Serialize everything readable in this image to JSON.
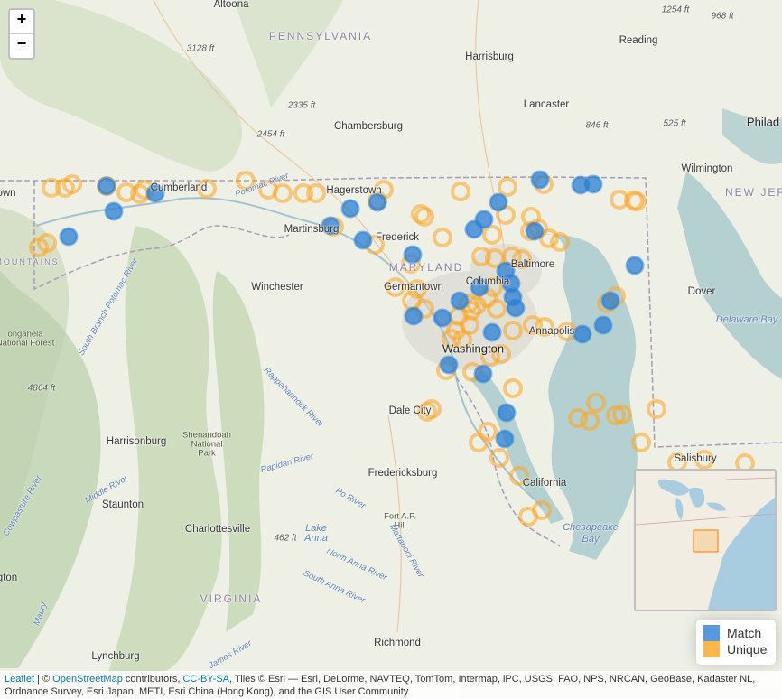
{
  "zoom": {
    "in_label": "+",
    "out_label": "−"
  },
  "colors": {
    "match": "#2b7fd6",
    "unique": "#ffa41c",
    "water": "#b5d0d0",
    "land": "#eef0e6"
  },
  "labels": {
    "altoona": "Altoona",
    "pennsylvania": "PENNSYLVANIA",
    "harrisburg": "Harrisburg",
    "reading": "Reading",
    "philad": "Philad",
    "lancaster": "Lancaster",
    "chambersburg": "Chambersburg",
    "wilmington": "Wilmington",
    "new_jersey": "NEW JERS",
    "hagerstown": "Hagerstown",
    "cumberland": "Cumberland",
    "martinsburg": "Martinsburg",
    "frederick": "Frederick",
    "maryland": "MARYLAND",
    "baltimore": "Baltimore",
    "columbia": "Columbia",
    "germantown": "Germantown",
    "winchester": "Winchester",
    "dover": "Dover",
    "delaware_bay": "Delaware Bay",
    "annapolis": "Annapolis",
    "washington": "Washington",
    "dale_city": "Dale City",
    "harrisonburg": "Harrisonburg",
    "shenandoah": "Shenandoah",
    "national": "National",
    "park": "Park",
    "fredericksburg": "Fredericksburg",
    "california": "California",
    "salisbury": "Salisbury",
    "staunton": "Staunton",
    "charlottesville": "Charlottesville",
    "fort_ap": "Fort A.P.",
    "hill": "Hill",
    "lake": "Lake",
    "anna": "Anna",
    "chesapeake": "Chesapeake",
    "bay": "Bay",
    "virginia": "VIRGINIA",
    "richmond": "Richmond",
    "lynchburg": "Lynchburg",
    "mountains": "MOUNTAINS",
    "town": "own",
    "gton": "gton",
    "national_line": "National Forest",
    "gongahela": "ongahela",
    "elev_1254": "1254 ft",
    "elev_968": "968 ft",
    "elev_3128": "3128 ft",
    "elev_2335": "2335 ft",
    "elev_2454": "2454 ft",
    "elev_846": "846 ft",
    "elev_525": "525 ft",
    "elev_4864": "4864 ft",
    "elev_462": "462 ft",
    "potomac_river": "Potomac River",
    "south_branch": "South Branch Potomac River",
    "rappahannock": "Rappahannock River",
    "rapidan": "Rapidan River",
    "po_river": "Po River",
    "middle_river": "Middle River",
    "pasture_river": "Cowpasture River",
    "north_anna": "North Anna River",
    "south_anna": "South Anna River",
    "mattaponi": "Mattaponi River",
    "james_river": "James River",
    "maury": "Maury"
  },
  "legend": {
    "match_label": "Match",
    "unique_label": "Unique"
  },
  "markers": {
    "match": [
      [
        172,
        214
      ],
      [
        126,
        234
      ],
      [
        76,
        262
      ],
      [
        388,
        231
      ],
      [
        366,
        250
      ],
      [
        402,
        266
      ],
      [
        418,
        224
      ],
      [
        457,
        282
      ],
      [
        552,
        224
      ],
      [
        536,
        243
      ],
      [
        525,
        254
      ],
      [
        598,
        199
      ],
      [
        643,
        205
      ],
      [
        657,
        204
      ],
      [
        592,
        256
      ],
      [
        703,
        294
      ],
      [
        560,
        300
      ],
      [
        566,
        314
      ],
      [
        531,
        318
      ],
      [
        509,
        333
      ],
      [
        490,
        352
      ],
      [
        458,
        350
      ],
      [
        545,
        368
      ],
      [
        571,
        341
      ],
      [
        568,
        329
      ],
      [
        676,
        333
      ],
      [
        668,
        360
      ],
      [
        645,
        370
      ],
      [
        497,
        404
      ],
      [
        535,
        414
      ],
      [
        561,
        457
      ],
      [
        559,
        486
      ],
      [
        118,
        206
      ]
    ],
    "unique": [
      [
        57,
        208
      ],
      [
        72,
        208
      ],
      [
        80,
        204
      ],
      [
        118,
        206
      ],
      [
        140,
        213
      ],
      [
        155,
        215
      ],
      [
        160,
        210
      ],
      [
        52,
        269
      ],
      [
        43,
        274
      ],
      [
        229,
        209
      ],
      [
        272,
        200
      ],
      [
        297,
        210
      ],
      [
        313,
        214
      ],
      [
        336,
        214
      ],
      [
        350,
        214
      ],
      [
        425,
        210
      ],
      [
        418,
        222
      ],
      [
        510,
        212
      ],
      [
        562,
        207
      ],
      [
        602,
        204
      ],
      [
        370,
        251
      ],
      [
        415,
        271
      ],
      [
        490,
        263
      ],
      [
        466,
        237
      ],
      [
        470,
        240
      ],
      [
        560,
        238
      ],
      [
        588,
        240
      ],
      [
        545,
        260
      ],
      [
        533,
        284
      ],
      [
        548,
        286
      ],
      [
        567,
        284
      ],
      [
        578,
        287
      ],
      [
        587,
        256
      ],
      [
        608,
        264
      ],
      [
        620,
        268
      ],
      [
        596,
        253
      ],
      [
        686,
        221
      ],
      [
        705,
        223
      ],
      [
        702,
        222
      ],
      [
        455,
        292
      ],
      [
        438,
        318
      ],
      [
        462,
        320
      ],
      [
        456,
        333
      ],
      [
        470,
        342
      ],
      [
        508,
        350
      ],
      [
        519,
        336
      ],
      [
        522,
        344
      ],
      [
        528,
        338
      ],
      [
        540,
        330
      ],
      [
        546,
        318
      ],
      [
        550,
        342
      ],
      [
        520,
        360
      ],
      [
        505,
        366
      ],
      [
        500,
        375
      ],
      [
        512,
        376
      ],
      [
        590,
        360
      ],
      [
        603,
        362
      ],
      [
        568,
        366
      ],
      [
        628,
        367
      ],
      [
        682,
        328
      ],
      [
        672,
        336
      ],
      [
        494,
        410
      ],
      [
        523,
        412
      ],
      [
        543,
        395
      ],
      [
        555,
        392
      ],
      [
        568,
        430
      ],
      [
        478,
        453
      ],
      [
        473,
        456
      ],
      [
        540,
        478
      ],
      [
        530,
        490
      ],
      [
        553,
        507
      ],
      [
        575,
        527
      ],
      [
        600,
        565
      ],
      [
        585,
        572
      ],
      [
        640,
        463
      ],
      [
        653,
        466
      ],
      [
        660,
        446
      ],
      [
        682,
        460
      ],
      [
        689,
        459
      ],
      [
        727,
        453
      ],
      [
        710,
        490
      ],
      [
        750,
        512
      ],
      [
        780,
        509
      ],
      [
        825,
        513
      ]
    ]
  }
}
